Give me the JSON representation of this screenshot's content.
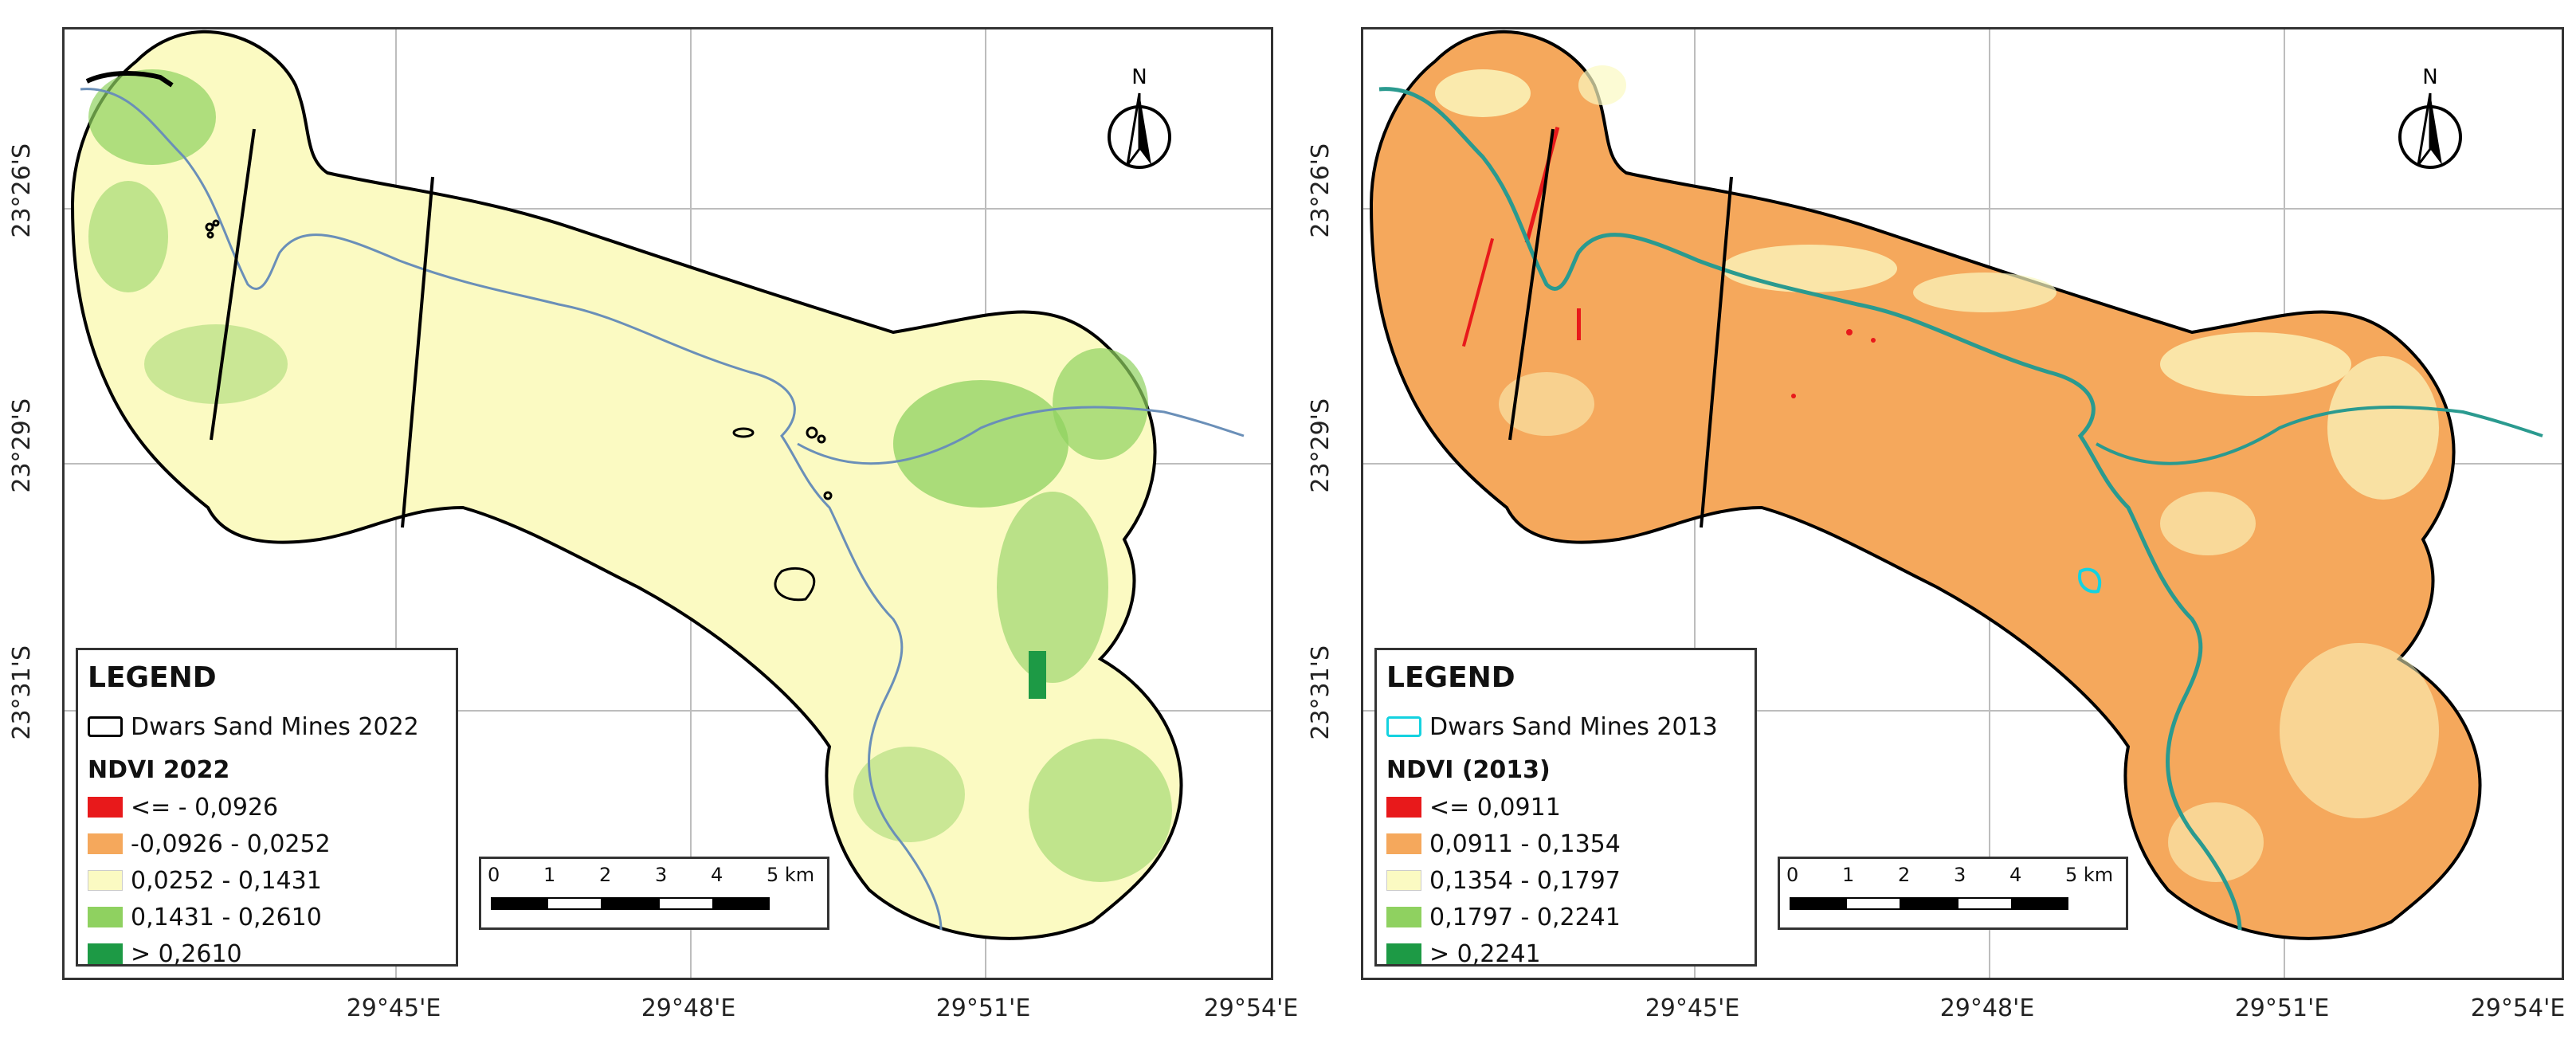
{
  "panels": [
    {
      "id": "ndvi-2022",
      "latitudes": [
        "23°26'S",
        "23°29'S",
        "23°31'S"
      ],
      "longitudes": [
        "29°45'E",
        "29°48'E",
        "29°51'E",
        "29°54'E"
      ],
      "north_label": "N",
      "legend": {
        "title": "LEGEND",
        "mines_label": "Dwars Sand Mines 2022",
        "mines_outline_color": "#000000",
        "ndvi_title": "NDVI 2022",
        "classes": [
          {
            "label": "<= - 0,0926",
            "color": "#e8191b"
          },
          {
            "label": "-0,0926 - 0,0252",
            "color": "#f5a85c"
          },
          {
            "label": "0,0252 - 0,1431",
            "color": "#fbfac2"
          },
          {
            "label": "0,1431 - 0,2610",
            "color": "#8fd160"
          },
          {
            "label": "> 0,2610",
            "color": "#1d9a45"
          }
        ]
      },
      "scalebar": {
        "ticks": [
          "0",
          "1",
          "2",
          "3",
          "4",
          "5 km"
        ]
      },
      "map_base_color": "#fbfac2",
      "map_patch_color": "#8fd160"
    },
    {
      "id": "ndvi-2013",
      "latitudes": [
        "23°26'S",
        "23°29'S",
        "23°31'S"
      ],
      "longitudes": [
        "29°45'E",
        "29°48'E",
        "29°51'E",
        "29°54'E"
      ],
      "north_label": "N",
      "legend": {
        "title": "LEGEND",
        "mines_label": "Dwars Sand Mines 2013",
        "mines_outline_color": "#14d2e0",
        "ndvi_title": "NDVI (2013)",
        "classes": [
          {
            "label": "<= 0,0911",
            "color": "#e8191b"
          },
          {
            "label": "0,0911 - 0,1354",
            "color": "#f5a85c"
          },
          {
            "label": "0,1354 - 0,1797",
            "color": "#fbfac2"
          },
          {
            "label": "0,1797 - 0,2241",
            "color": "#8fd160"
          },
          {
            "label": "> 0,2241",
            "color": "#1d9a45"
          }
        ]
      },
      "scalebar": {
        "ticks": [
          "0",
          "1",
          "2",
          "3",
          "4",
          "5 km"
        ]
      },
      "map_base_color": "#f5a85c",
      "map_patch_color": "#fbfac2"
    }
  ]
}
